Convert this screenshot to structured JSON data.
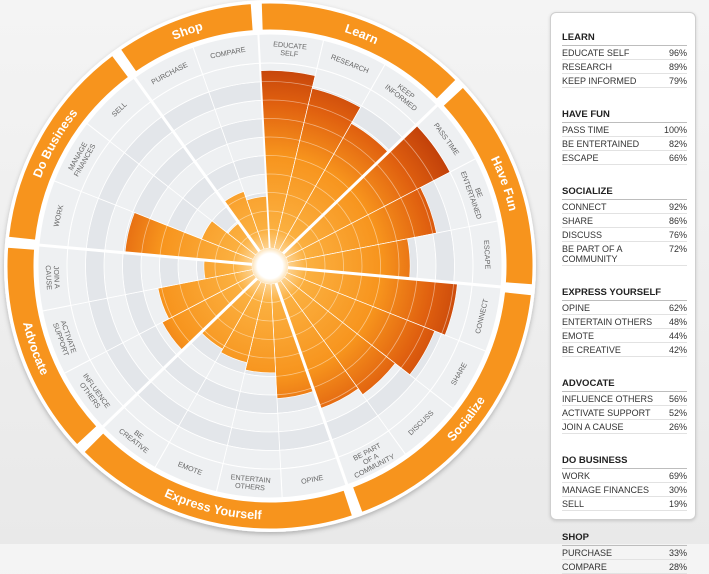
{
  "chart_data": {
    "type": "radial-bar",
    "rlim": [
      0,
      100
    ],
    "colors": {
      "ring": "#f7941d",
      "grid_fill": "#e3e6ea",
      "grid_fill_alt": "#eef0f2",
      "grid_fill_dark": "#c9ced4",
      "bar_light": "#f7941d",
      "bar_dark": "#c2410a"
    },
    "sections": [
      {
        "name": "Learn",
        "items": [
          {
            "label": "EDUCATE SELF",
            "value": 96
          },
          {
            "label": "RESEARCH",
            "value": 89
          },
          {
            "label": "KEEP INFORMED",
            "value": 79
          }
        ]
      },
      {
        "name": "Have Fun",
        "items": [
          {
            "label": "PASS TIME",
            "value": 100
          },
          {
            "label": "BE ENTERTAINED",
            "value": 82
          },
          {
            "label": "ESCAPE",
            "value": 66
          }
        ]
      },
      {
        "name": "Socialize",
        "items": [
          {
            "label": "CONNECT",
            "value": 92
          },
          {
            "label": "SHARE",
            "value": 86
          },
          {
            "label": "DISCUSS",
            "value": 76
          },
          {
            "label": "BE PART OF A COMMUNITY",
            "value": 72
          }
        ]
      },
      {
        "name": "Express Yourself",
        "items": [
          {
            "label": "OPINE",
            "value": 62
          },
          {
            "label": "ENTERTAIN OTHERS",
            "value": 48
          },
          {
            "label": "EMOTE",
            "value": 44
          },
          {
            "label": "BE CREATIVE",
            "value": 42
          }
        ]
      },
      {
        "name": "Advocate",
        "items": [
          {
            "label": "INFLUENCE OTHERS",
            "value": 56
          },
          {
            "label": "ACTIVATE SUPPORT",
            "value": 52
          },
          {
            "label": "JOIN A CAUSE",
            "value": 26
          }
        ]
      },
      {
        "name": "Do Business",
        "items": [
          {
            "label": "WORK",
            "value": 69
          },
          {
            "label": "MANAGE FINANCES",
            "value": 30
          },
          {
            "label": "SELL",
            "value": 19
          }
        ]
      },
      {
        "name": "Shop",
        "items": [
          {
            "label": "PURCHASE",
            "value": 33
          },
          {
            "label": "COMPARE",
            "value": 28
          }
        ]
      }
    ],
    "wheel_labels": {
      "Learn": [
        [
          "EDUCATE",
          "SELF"
        ],
        [
          "RESEARCH"
        ],
        [
          "KEEP",
          "INFORMED"
        ]
      ],
      "Have Fun": [
        [
          "PASS TIME"
        ],
        [
          "BE",
          "ENTERTAINED"
        ],
        [
          "ESCAPE"
        ]
      ],
      "Socialize": [
        [
          "CONNECT"
        ],
        [
          "SHARE"
        ],
        [
          "DISCUSS"
        ],
        [
          "BE PART",
          "OF A",
          "COMMUNITY"
        ]
      ],
      "Express Yourself": [
        [
          "OPINE"
        ],
        [
          "ENTERTAIN",
          "OTHERS"
        ],
        [
          "EMOTE"
        ],
        [
          "BE",
          "CREATIVE"
        ]
      ],
      "Advocate": [
        [
          "INFLUENCE",
          "OTHERS"
        ],
        [
          "ACTIVATE",
          "SUPPORT"
        ],
        [
          "JOIN A",
          "CAUSE"
        ]
      ],
      "Do Business": [
        [
          "WORK"
        ],
        [
          "MANAGE",
          "FINANCES"
        ],
        [
          "SELL"
        ]
      ],
      "Shop": [
        [
          "PURCHASE"
        ],
        [
          "COMPARE"
        ]
      ]
    }
  }
}
